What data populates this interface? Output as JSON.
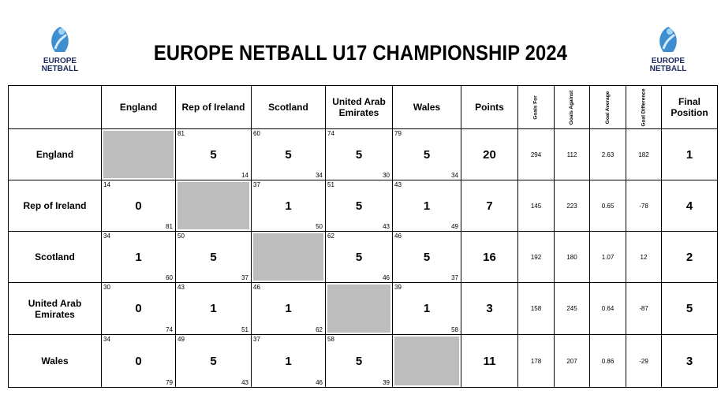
{
  "header": {
    "title": "EUROPE NETBALL U17 CHAMPIONSHIP 2024",
    "logo": [
      "EUROPE",
      "NETBALL"
    ]
  },
  "table": {
    "columns": [
      "England",
      "Rep of Ireland",
      "Scotland",
      "United Arab Emirates",
      "Wales",
      "Points",
      "Goals For",
      "Goals Against",
      "Goal Average",
      "Goal Difference",
      "Final Position"
    ],
    "rows": [
      {
        "team": "England",
        "results": [
          null,
          [
            "81",
            "5",
            "14"
          ],
          [
            "60",
            "5",
            "34"
          ],
          [
            "74",
            "5",
            "30"
          ],
          [
            "79",
            "5",
            "34"
          ]
        ],
        "stats": [
          "20",
          "294",
          "112",
          "2.63",
          "182",
          "1"
        ]
      },
      {
        "team": "Rep of Ireland",
        "results": [
          [
            "14",
            "0",
            "81"
          ],
          null,
          [
            "37",
            "1",
            "50"
          ],
          [
            "51",
            "5",
            "43"
          ],
          [
            "43",
            "1",
            "49"
          ]
        ],
        "stats": [
          "7",
          "145",
          "223",
          "0.65",
          "-78",
          "4"
        ]
      },
      {
        "team": "Scotland",
        "results": [
          [
            "34",
            "1",
            "60"
          ],
          [
            "50",
            "5",
            "37"
          ],
          null,
          [
            "62",
            "5",
            "46"
          ],
          [
            "46",
            "5",
            "37"
          ]
        ],
        "stats": [
          "16",
          "192",
          "180",
          "1.07",
          "12",
          "2"
        ]
      },
      {
        "team": "United Arab Emirates",
        "results": [
          [
            "30",
            "0",
            "74"
          ],
          [
            "43",
            "1",
            "51"
          ],
          [
            "46",
            "1",
            "62"
          ],
          null,
          [
            "39",
            "1",
            "58"
          ]
        ],
        "stats": [
          "3",
          "158",
          "245",
          "0.64",
          "-87",
          "5"
        ]
      },
      {
        "team": "Wales",
        "results": [
          [
            "34",
            "0",
            "79"
          ],
          [
            "49",
            "5",
            "43"
          ],
          [
            "37",
            "1",
            "46"
          ],
          [
            "58",
            "5",
            "39"
          ],
          null
        ],
        "stats": [
          "11",
          "178",
          "207",
          "0.86",
          "-29",
          "3"
        ]
      }
    ]
  }
}
